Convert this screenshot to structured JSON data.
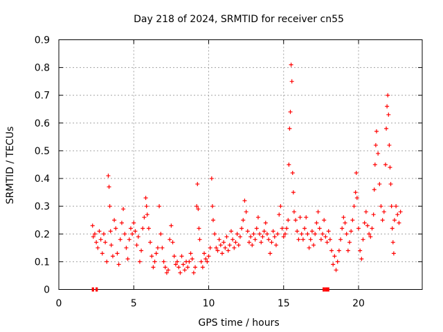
{
  "chart_data": {
    "type": "scatter",
    "title": "Day 218 of 2024, SRMTID for receiver cn55",
    "xlabel": "GPS time / hours",
    "ylabel": "SRMTID / TECUs",
    "xlim": [
      0,
      24.25
    ],
    "ylim": [
      0,
      0.9
    ],
    "xticks": [
      0,
      5,
      10,
      15,
      20
    ],
    "yticks": [
      0,
      0.1,
      0.2,
      0.3,
      0.4,
      0.5,
      0.6,
      0.7,
      0.8,
      0.9
    ],
    "xtick_labels": [
      "0",
      "5",
      "10",
      "15",
      "20"
    ],
    "ytick_labels": [
      "0",
      "0.1",
      "0.2",
      "0.3",
      "0.4",
      "0.5",
      "0.6",
      "0.7",
      "0.8",
      "0.9"
    ],
    "grid": true,
    "marker": "+",
    "color": "#ff0000",
    "series": [
      {
        "name": "SRMTID",
        "points": [
          [
            2.25,
            0.23
          ],
          [
            2.3,
            0.19
          ],
          [
            2.4,
            0.2
          ],
          [
            2.5,
            0.17
          ],
          [
            2.6,
            0.15
          ],
          [
            2.7,
            0.21
          ],
          [
            2.8,
            0.18
          ],
          [
            2.9,
            0.13
          ],
          [
            3.0,
            0.2
          ],
          [
            3.1,
            0.17
          ],
          [
            3.2,
            0.1
          ],
          [
            3.3,
            0.41
          ],
          [
            3.35,
            0.37
          ],
          [
            3.4,
            0.3
          ],
          [
            3.45,
            0.21
          ],
          [
            3.5,
            0.16
          ],
          [
            3.6,
            0.12
          ],
          [
            3.7,
            0.25
          ],
          [
            3.8,
            0.22
          ],
          [
            3.9,
            0.13
          ],
          [
            4.0,
            0.09
          ],
          [
            4.1,
            0.18
          ],
          [
            4.2,
            0.24
          ],
          [
            4.3,
            0.29
          ],
          [
            4.4,
            0.2
          ],
          [
            4.5,
            0.15
          ],
          [
            4.6,
            0.11
          ],
          [
            4.7,
            0.18
          ],
          [
            4.8,
            0.22
          ],
          [
            4.9,
            0.2
          ],
          [
            5.0,
            0.24
          ],
          [
            5.1,
            0.21
          ],
          [
            5.2,
            0.16
          ],
          [
            5.3,
            0.19
          ],
          [
            5.4,
            0.1
          ],
          [
            5.5,
            0.14
          ],
          [
            5.6,
            0.22
          ],
          [
            5.7,
            0.26
          ],
          [
            5.8,
            0.33
          ],
          [
            5.85,
            0.3
          ],
          [
            5.9,
            0.27
          ],
          [
            6.0,
            0.22
          ],
          [
            6.1,
            0.17
          ],
          [
            6.2,
            0.12
          ],
          [
            6.3,
            0.08
          ],
          [
            6.4,
            0.1
          ],
          [
            6.5,
            0.13
          ],
          [
            6.6,
            0.15
          ],
          [
            6.7,
            0.3
          ],
          [
            6.8,
            0.2
          ],
          [
            6.9,
            0.15
          ],
          [
            7.0,
            0.1
          ],
          [
            7.1,
            0.08
          ],
          [
            7.2,
            0.06
          ],
          [
            7.3,
            0.07
          ],
          [
            7.4,
            0.18
          ],
          [
            7.5,
            0.23
          ],
          [
            7.6,
            0.17
          ],
          [
            7.7,
            0.12
          ],
          [
            7.8,
            0.09
          ],
          [
            7.9,
            0.1
          ],
          [
            8.0,
            0.08
          ],
          [
            8.1,
            0.06
          ],
          [
            8.2,
            0.12
          ],
          [
            8.3,
            0.09
          ],
          [
            8.4,
            0.07
          ],
          [
            8.5,
            0.1
          ],
          [
            8.6,
            0.08
          ],
          [
            8.7,
            0.1
          ],
          [
            8.8,
            0.13
          ],
          [
            8.9,
            0.11
          ],
          [
            9.0,
            0.06
          ],
          [
            9.1,
            0.08
          ],
          [
            9.2,
            0.3
          ],
          [
            9.25,
            0.38
          ],
          [
            9.3,
            0.29
          ],
          [
            9.35,
            0.22
          ],
          [
            9.4,
            0.18
          ],
          [
            9.5,
            0.1
          ],
          [
            9.6,
            0.08
          ],
          [
            9.7,
            0.13
          ],
          [
            9.8,
            0.11
          ],
          [
            9.9,
            0.1
          ],
          [
            10.0,
            0.12
          ],
          [
            10.1,
            0.15
          ],
          [
            10.2,
            0.4
          ],
          [
            10.25,
            0.3
          ],
          [
            10.3,
            0.25
          ],
          [
            10.4,
            0.2
          ],
          [
            10.5,
            0.15
          ],
          [
            10.6,
            0.14
          ],
          [
            10.7,
            0.18
          ],
          [
            10.8,
            0.16
          ],
          [
            10.9,
            0.13
          ],
          [
            11.0,
            0.17
          ],
          [
            11.1,
            0.15
          ],
          [
            11.2,
            0.19
          ],
          [
            11.3,
            0.14
          ],
          [
            11.4,
            0.16
          ],
          [
            11.5,
            0.21
          ],
          [
            11.6,
            0.18
          ],
          [
            11.7,
            0.15
          ],
          [
            11.8,
            0.17
          ],
          [
            11.9,
            0.2
          ],
          [
            12.0,
            0.16
          ],
          [
            12.1,
            0.19
          ],
          [
            12.2,
            0.22
          ],
          [
            12.3,
            0.25
          ],
          [
            12.4,
            0.32
          ],
          [
            12.5,
            0.28
          ],
          [
            12.6,
            0.21
          ],
          [
            12.7,
            0.17
          ],
          [
            12.8,
            0.19
          ],
          [
            12.9,
            0.16
          ],
          [
            13.0,
            0.2
          ],
          [
            13.1,
            0.18
          ],
          [
            13.2,
            0.22
          ],
          [
            13.3,
            0.26
          ],
          [
            13.4,
            0.2
          ],
          [
            13.5,
            0.17
          ],
          [
            13.6,
            0.19
          ],
          [
            13.7,
            0.21
          ],
          [
            13.8,
            0.24
          ],
          [
            13.9,
            0.2
          ],
          [
            14.0,
            0.18
          ],
          [
            14.1,
            0.13
          ],
          [
            14.2,
            0.17
          ],
          [
            14.3,
            0.21
          ],
          [
            14.4,
            0.19
          ],
          [
            14.5,
            0.16
          ],
          [
            14.6,
            0.2
          ],
          [
            14.7,
            0.27
          ],
          [
            14.8,
            0.3
          ],
          [
            14.9,
            0.22
          ],
          [
            15.0,
            0.19
          ],
          [
            15.1,
            0.2
          ],
          [
            15.2,
            0.22
          ],
          [
            15.3,
            0.25
          ],
          [
            15.35,
            0.45
          ],
          [
            15.4,
            0.58
          ],
          [
            15.45,
            0.64
          ],
          [
            15.5,
            0.81
          ],
          [
            15.55,
            0.75
          ],
          [
            15.6,
            0.42
          ],
          [
            15.65,
            0.35
          ],
          [
            15.7,
            0.28
          ],
          [
            15.8,
            0.25
          ],
          [
            15.9,
            0.21
          ],
          [
            16.0,
            0.18
          ],
          [
            16.1,
            0.26
          ],
          [
            16.2,
            0.2
          ],
          [
            16.3,
            0.18
          ],
          [
            16.4,
            0.22
          ],
          [
            16.5,
            0.26
          ],
          [
            16.6,
            0.2
          ],
          [
            16.7,
            0.15
          ],
          [
            16.8,
            0.18
          ],
          [
            16.9,
            0.21
          ],
          [
            17.0,
            0.16
          ],
          [
            17.1,
            0.2
          ],
          [
            17.2,
            0.24
          ],
          [
            17.3,
            0.28
          ],
          [
            17.4,
            0.22
          ],
          [
            17.5,
            0.18
          ],
          [
            17.6,
            0.2
          ],
          [
            17.7,
            0.25
          ],
          [
            17.8,
            0.19
          ],
          [
            17.9,
            0.17
          ],
          [
            18.0,
            0.21
          ],
          [
            18.1,
            0.18
          ],
          [
            18.2,
            0.14
          ],
          [
            18.3,
            0.09
          ],
          [
            18.4,
            0.12
          ],
          [
            18.5,
            0.07
          ],
          [
            18.6,
            0.1
          ],
          [
            18.7,
            0.14
          ],
          [
            18.8,
            0.18
          ],
          [
            18.9,
            0.22
          ],
          [
            19.0,
            0.26
          ],
          [
            19.1,
            0.24
          ],
          [
            19.2,
            0.2
          ],
          [
            19.3,
            0.14
          ],
          [
            19.4,
            0.17
          ],
          [
            19.5,
            0.21
          ],
          [
            19.6,
            0.25
          ],
          [
            19.7,
            0.3
          ],
          [
            19.8,
            0.35
          ],
          [
            19.85,
            0.42
          ],
          [
            19.9,
            0.33
          ],
          [
            20.0,
            0.22
          ],
          [
            20.1,
            0.14
          ],
          [
            20.2,
            0.11
          ],
          [
            20.3,
            0.18
          ],
          [
            20.4,
            0.24
          ],
          [
            20.5,
            0.28
          ],
          [
            20.6,
            0.23
          ],
          [
            20.7,
            0.2
          ],
          [
            20.8,
            0.19
          ],
          [
            20.9,
            0.22
          ],
          [
            21.0,
            0.27
          ],
          [
            21.05,
            0.36
          ],
          [
            21.1,
            0.45
          ],
          [
            21.15,
            0.52
          ],
          [
            21.2,
            0.57
          ],
          [
            21.3,
            0.49
          ],
          [
            21.4,
            0.38
          ],
          [
            21.5,
            0.3
          ],
          [
            21.6,
            0.25
          ],
          [
            21.7,
            0.28
          ],
          [
            21.8,
            0.45
          ],
          [
            21.85,
            0.58
          ],
          [
            21.9,
            0.66
          ],
          [
            21.95,
            0.7
          ],
          [
            22.0,
            0.63
          ],
          [
            22.05,
            0.52
          ],
          [
            22.1,
            0.44
          ],
          [
            22.15,
            0.38
          ],
          [
            22.2,
            0.3
          ],
          [
            22.25,
            0.22
          ],
          [
            22.3,
            0.17
          ],
          [
            22.35,
            0.13
          ],
          [
            22.4,
            0.25
          ],
          [
            22.5,
            0.3
          ],
          [
            22.6,
            0.27
          ],
          [
            22.7,
            0.24
          ],
          [
            22.8,
            0.28
          ]
        ]
      }
    ],
    "gaps": [
      [
        2.2,
        2.35
      ],
      [
        2.45,
        2.6
      ],
      [
        17.6,
        17.75
      ],
      [
        17.75,
        18.05
      ]
    ]
  }
}
